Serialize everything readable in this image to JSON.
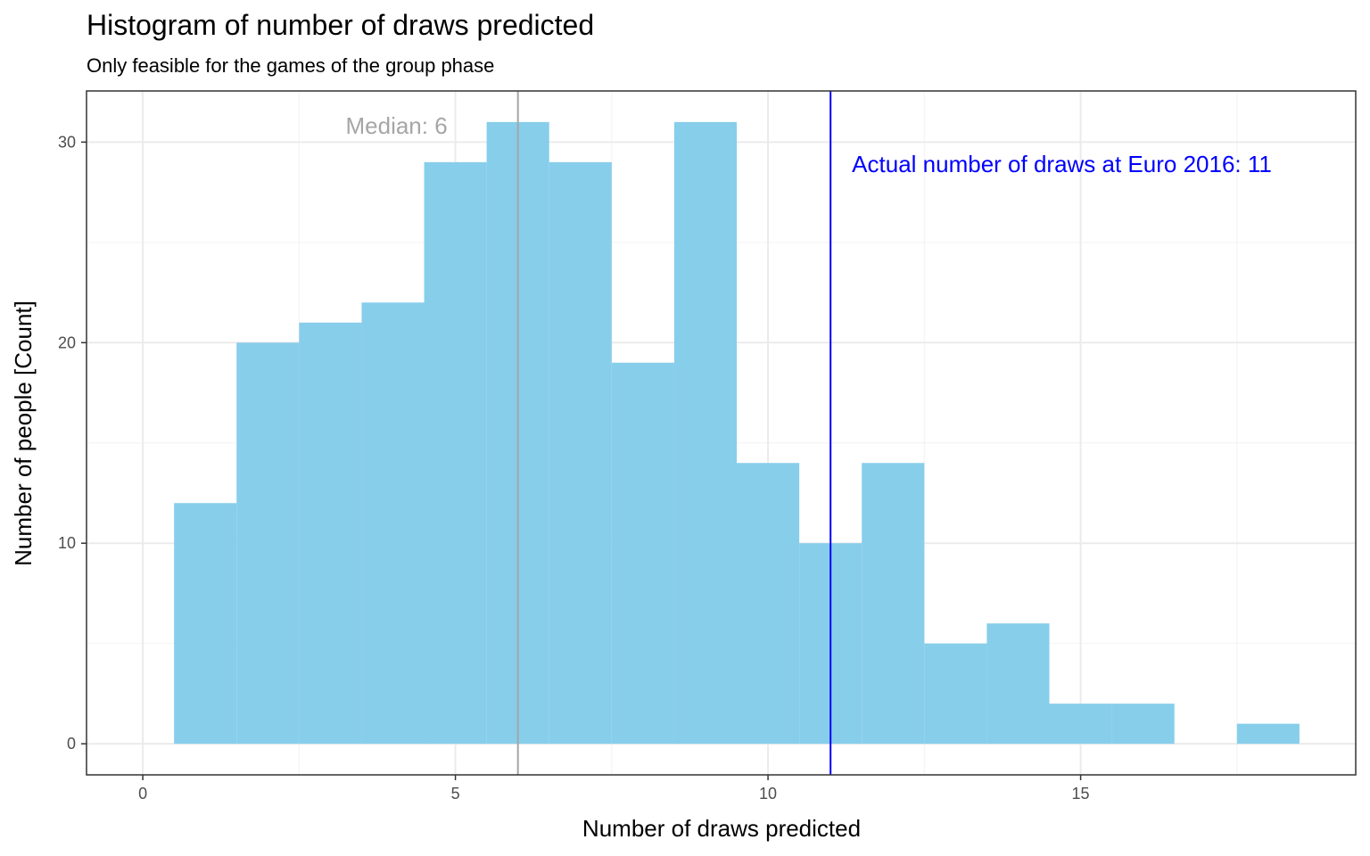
{
  "chart_data": {
    "type": "bar",
    "title": "Histogram of number of draws predicted",
    "subtitle": "Only feasible for the games of the group phase",
    "xlabel": "Number of draws predicted",
    "ylabel": "Number of people [Count]",
    "x": [
      1,
      2,
      3,
      4,
      5,
      6,
      7,
      8,
      9,
      10,
      11,
      12,
      13,
      14,
      15,
      16,
      18
    ],
    "values": [
      12,
      20,
      21,
      22,
      29,
      31,
      29,
      19,
      31,
      14,
      10,
      14,
      5,
      6,
      2,
      2,
      1
    ],
    "bin_width": 1,
    "xlim": [
      -0.9,
      19.4
    ],
    "ylim": [
      -1.55,
      32.55
    ],
    "x_ticks": [
      "0",
      "5",
      "10",
      "15"
    ],
    "y_ticks": [
      "0",
      "10",
      "20",
      "30"
    ],
    "grid": true,
    "bar_color": "#87CEEB",
    "annotations": [
      {
        "text": "Median: 6",
        "x": 6,
        "color": "#A6A6A6"
      },
      {
        "text": "Actual number of draws at Euro 2016: 11",
        "x": 11,
        "color": "#0000FF"
      }
    ]
  }
}
